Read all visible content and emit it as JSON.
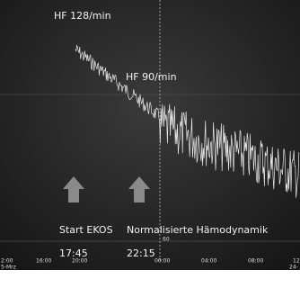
{
  "annotations": {
    "hf_start": "HF 128/min",
    "hf_later": "HF 90/min",
    "event_1": "Start EKOS",
    "time_1": "17:45",
    "event_2": "Normalisierte Hämodynamik",
    "time_2": "22:15",
    "baseline": "60"
  },
  "time_axis": {
    "labels": [
      "2:00",
      "16:00",
      "20:00",
      "00:00",
      "04:00",
      "08:00",
      "12"
    ],
    "date_left": "5-Mrz",
    "date_right": "24-"
  }
}
